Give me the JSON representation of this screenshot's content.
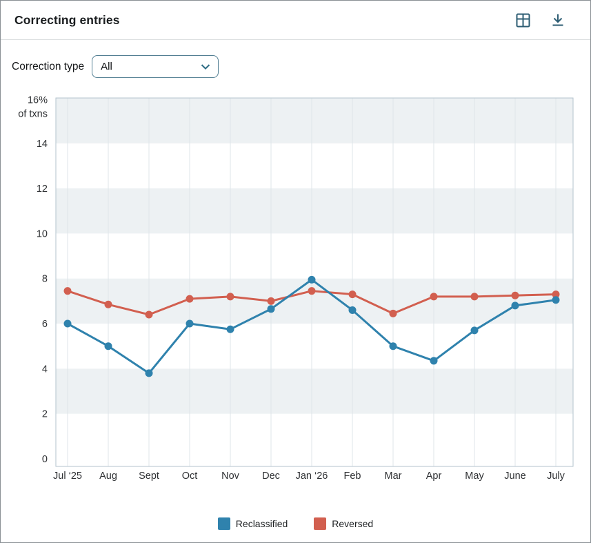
{
  "header": {
    "title": "Correcting entries",
    "icons": [
      {
        "name": "table-view-icon"
      },
      {
        "name": "download-icon"
      }
    ]
  },
  "filter": {
    "label": "Correction type",
    "value": "All"
  },
  "chart_data": {
    "type": "line",
    "title": "Correcting entries",
    "categories": [
      "Jul ‘25",
      "Aug",
      "Sept",
      "Oct",
      "Nov",
      "Dec",
      "Jan ‘26",
      "Feb",
      "Mar",
      "Apr",
      "May",
      "June",
      "July"
    ],
    "series": [
      {
        "name": "Reclassified",
        "color": "#2f82ad",
        "values": [
          6.0,
          5.0,
          3.8,
          6.0,
          5.75,
          6.65,
          7.95,
          6.6,
          5.0,
          4.35,
          5.7,
          6.8,
          7.05
        ]
      },
      {
        "name": "Reversed",
        "color": "#d25f4f",
        "values": [
          7.45,
          6.85,
          6.4,
          7.1,
          7.2,
          7.0,
          7.45,
          7.3,
          6.45,
          7.2,
          7.2,
          7.25,
          7.3
        ]
      }
    ],
    "y_axis": {
      "top_label": "16%",
      "unit_label": "of txns",
      "ticks": [
        0,
        2,
        4,
        6,
        8,
        10,
        12,
        14,
        16
      ],
      "ylim": [
        0,
        16
      ]
    },
    "shaded_bands": [
      [
        14,
        16
      ],
      [
        10,
        12
      ],
      [
        6,
        8
      ],
      [
        2,
        4
      ]
    ],
    "grid": "vertical",
    "legend_position": "bottom",
    "colors": {
      "band_fill": "#edf1f3",
      "gridline": "#dfe5e9",
      "plot_border": "#b3c3ce",
      "tick_text": "#2e3033"
    }
  }
}
